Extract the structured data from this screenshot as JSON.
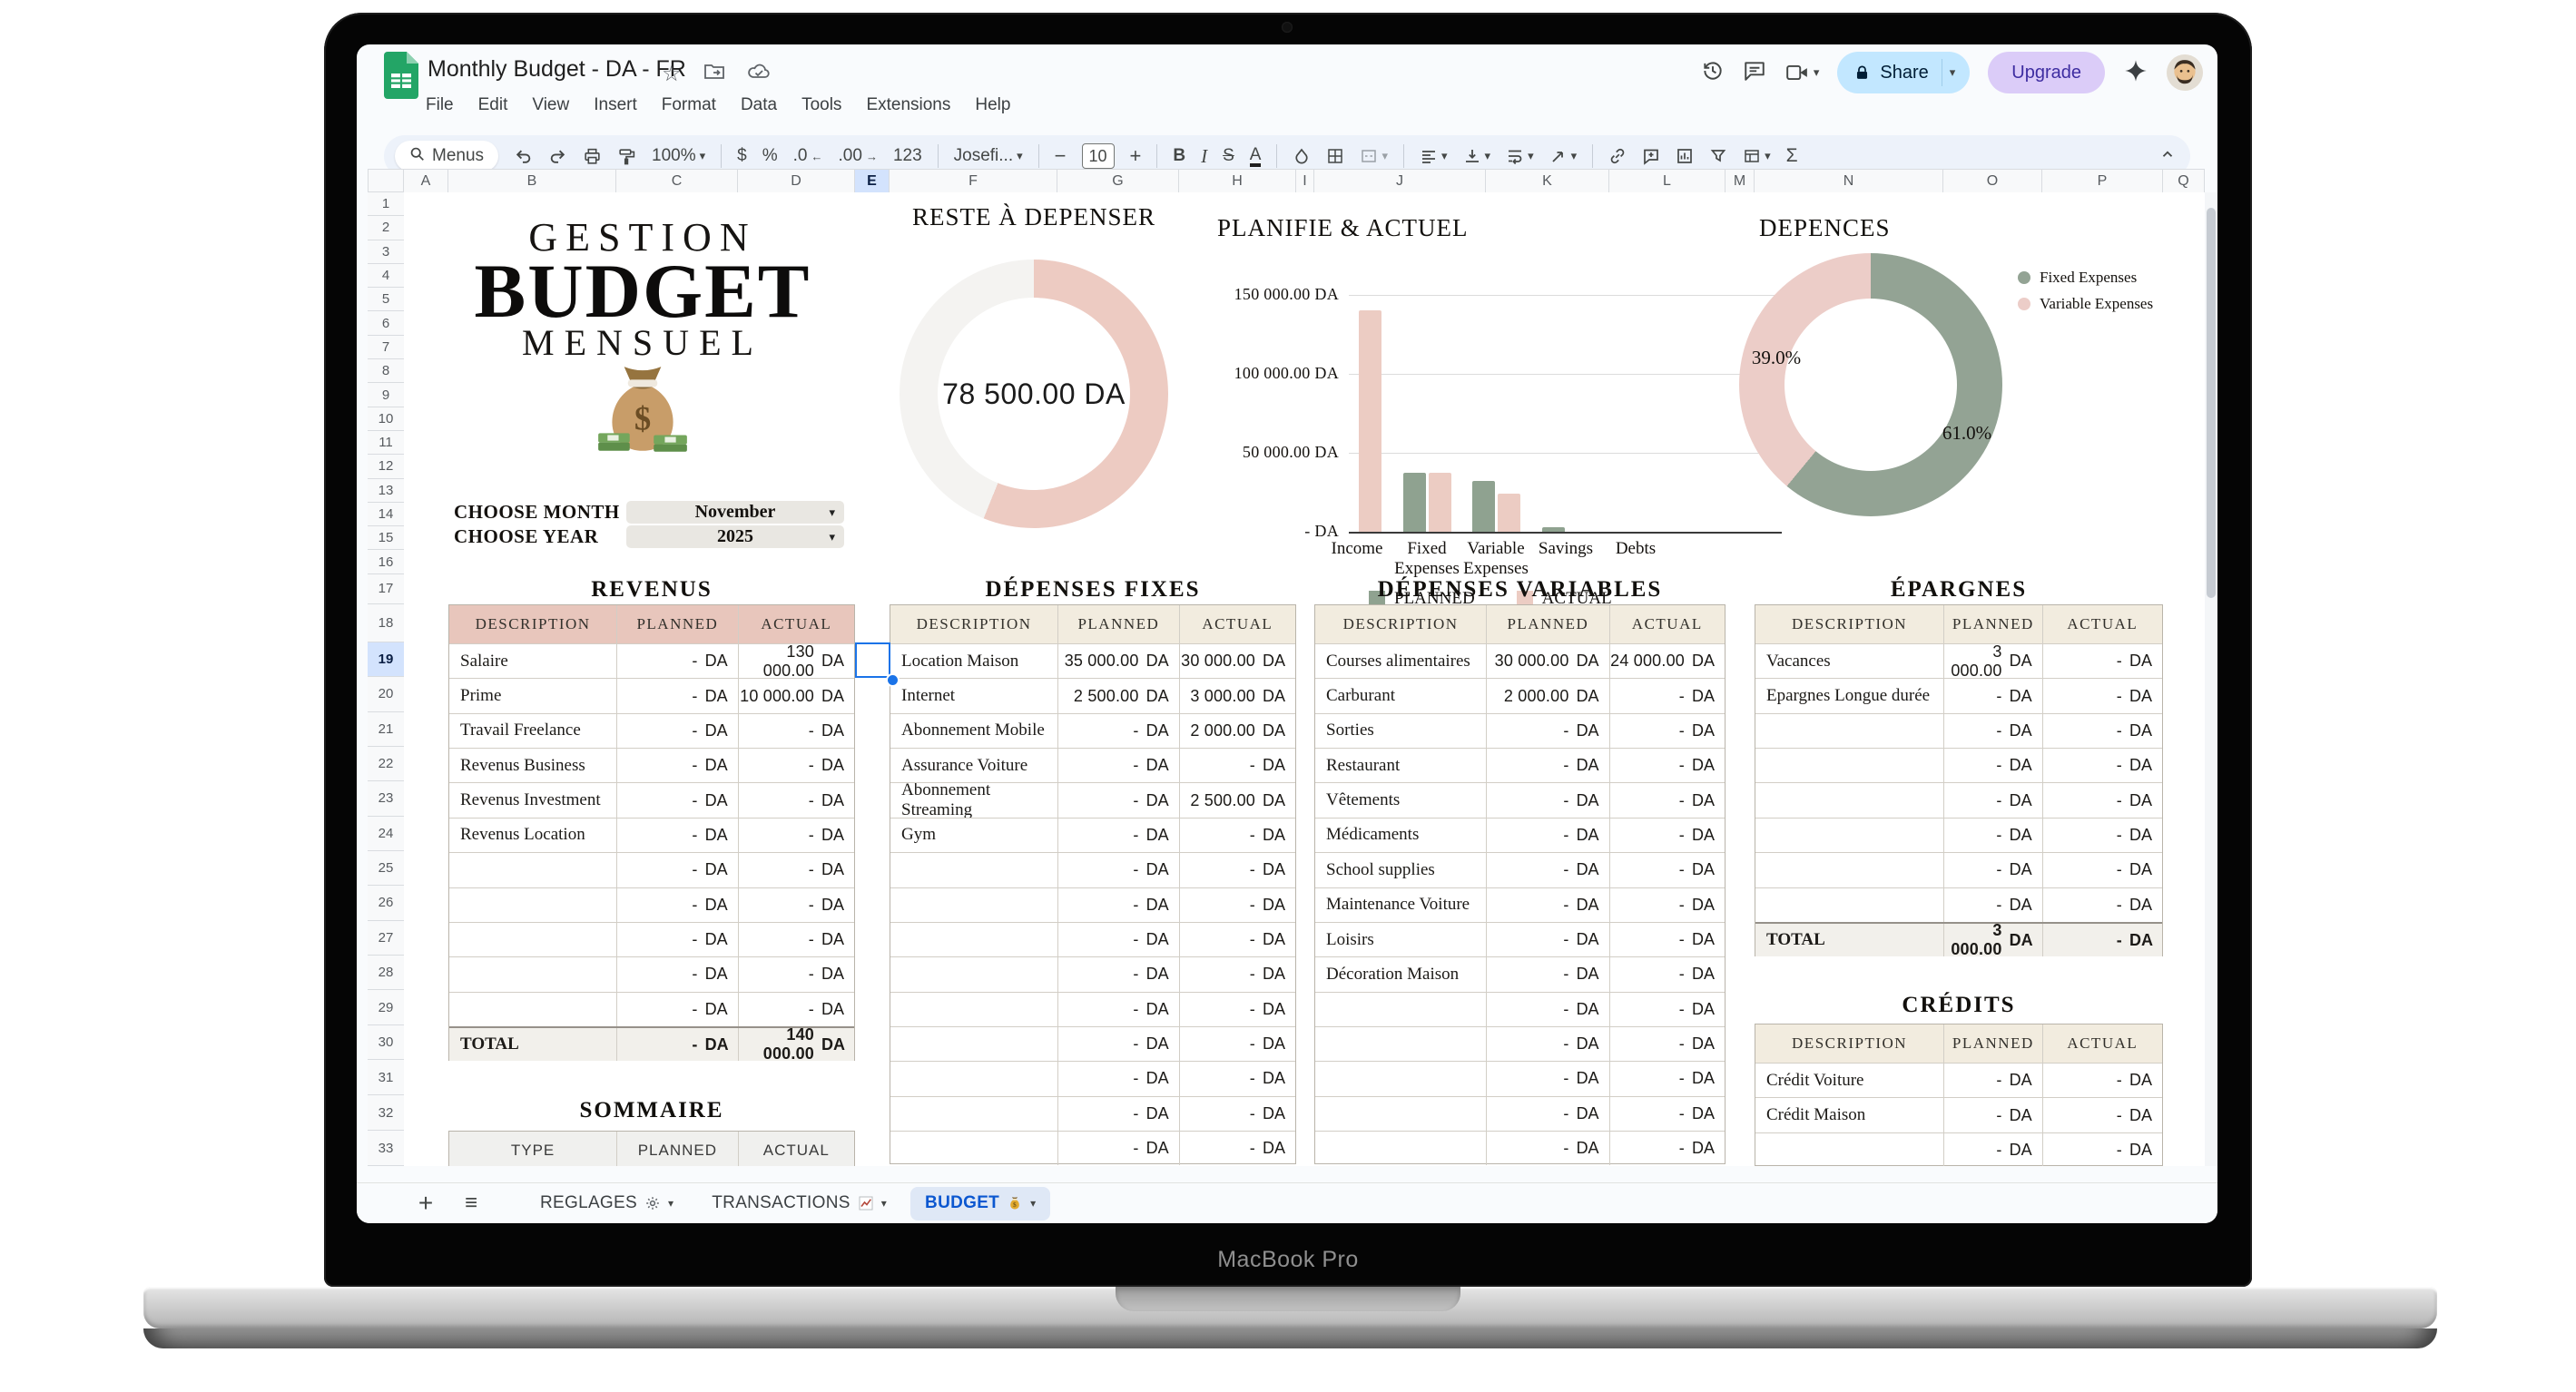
{
  "laptop": {
    "label": "MacBook Pro"
  },
  "chrome": {
    "doc_title": "Monthly Budget - DA - FR",
    "menu_items": [
      "File",
      "Edit",
      "View",
      "Insert",
      "Format",
      "Data",
      "Tools",
      "Extensions",
      "Help"
    ],
    "toolbar": {
      "menus": "Menus",
      "zoom": "100%",
      "dollar": "$",
      "percent": "%",
      "dec0": ".0",
      "dec00": ".00",
      "f123": "123",
      "font": "Josefi...",
      "size": "10",
      "bold": "B",
      "italic": "I",
      "strike": "S",
      "color": "A",
      "sigma": "Σ"
    },
    "share": "Share",
    "upgrade": "Upgrade",
    "tabs": [
      {
        "label": "REGLAGES",
        "icon": "gear-icon",
        "active": false
      },
      {
        "label": "TRANSACTIONS",
        "icon": "chart-icon",
        "active": false
      },
      {
        "label": "BUDGET",
        "icon": "moneybag-icon",
        "active": true
      }
    ],
    "column_letters": [
      "A",
      "B",
      "C",
      "D",
      "E",
      "F",
      "G",
      "H",
      "I",
      "J",
      "K",
      "L",
      "M",
      "N",
      "O",
      "P",
      "Q"
    ],
    "row_numbers": [
      "1",
      "2",
      "3",
      "4",
      "5",
      "6",
      "7",
      "8",
      "9",
      "10",
      "11",
      "12",
      "13",
      "14",
      "15",
      "16",
      "17",
      "18",
      "19",
      "20",
      "21",
      "22",
      "23",
      "24",
      "25",
      "26",
      "27",
      "28",
      "29",
      "30",
      "31",
      "32",
      "33"
    ],
    "selected_column": "E",
    "selected_row": "19"
  },
  "hero": {
    "title1": "GESTION",
    "title2": "BUDGET",
    "title3": "MENSUEL",
    "choose_month": "CHOOSE MONTH",
    "month": "November",
    "choose_year": "CHOOSE YEAR",
    "year": "2025"
  },
  "chart_data": [
    {
      "type": "donut",
      "title": "RESTE À DEPENSER",
      "center_label": "78 500.00 DA",
      "segments": [
        {
          "name": "remaining",
          "pct": 56.1,
          "color": "#edcbc2"
        },
        {
          "name": "spent",
          "pct": 43.9,
          "color": "#f4f3f1"
        }
      ]
    },
    {
      "type": "bar",
      "title": "PLANIFIE & ACTUEL",
      "categories": [
        "Income",
        "Fixed Expenses",
        "Variable Expenses",
        "Savings",
        "Debts"
      ],
      "series": [
        {
          "name": "PLANNED",
          "color": "#8fa290",
          "values": [
            0,
            37500,
            32000,
            3000,
            0
          ]
        },
        {
          "name": "ACTUAL",
          "color": "#ecccc3",
          "values": [
            140000,
            37500,
            24000,
            0,
            0
          ]
        }
      ],
      "yticks": [
        {
          "label": "-   DA",
          "value": 0
        },
        {
          "label": "50 000.00 DA",
          "value": 50000
        },
        {
          "label": "100 000.00 DA",
          "value": 100000
        },
        {
          "label": "150 000.00 DA",
          "value": 150000
        }
      ],
      "ylim": [
        0,
        150000
      ],
      "legend_position": "bottom"
    },
    {
      "type": "donut",
      "title": "DEPENCES",
      "segments": [
        {
          "name": "Fixed Expenses",
          "pct": 61.0,
          "pct_label": "61.0%",
          "color": "#93a394"
        },
        {
          "name": "Variable Expenses",
          "pct": 39.0,
          "pct_label": "39.0%",
          "color": "#eccdc8"
        }
      ]
    }
  ],
  "tables": {
    "unit": "DA",
    "headers": [
      "DESCRIPTION",
      "PLANNED",
      "ACTUAL"
    ],
    "revenus": {
      "title": "REVENUS",
      "rows": [
        [
          "Salaire",
          "-",
          "130 000.00"
        ],
        [
          "Prime",
          "-",
          "10 000.00"
        ],
        [
          "Travail Freelance",
          "-",
          "-"
        ],
        [
          "Revenus Business",
          "-",
          "-"
        ],
        [
          "Revenus Investment",
          "-",
          "-"
        ],
        [
          "Revenus Location",
          "-",
          "-"
        ],
        [
          "",
          "-",
          "-"
        ],
        [
          "",
          "-",
          "-"
        ],
        [
          "",
          "-",
          "-"
        ],
        [
          "",
          "-",
          "-"
        ],
        [
          "",
          "-",
          "-"
        ]
      ],
      "total": [
        "TOTAL",
        "-",
        "140 000.00"
      ]
    },
    "depenses_fixes": {
      "title": "DÉPENSES FIXES",
      "rows": [
        [
          "Location Maison",
          "35 000.00",
          "30 000.00"
        ],
        [
          "Internet",
          "2 500.00",
          "3 000.00"
        ],
        [
          "Abonnement Mobile",
          "-",
          "2 000.00"
        ],
        [
          "Assurance Voiture",
          "-",
          "-"
        ],
        [
          "Abonnement Streaming",
          "-",
          "2 500.00"
        ],
        [
          "Gym",
          "-",
          "-"
        ],
        [
          "",
          "-",
          "-"
        ],
        [
          "",
          "-",
          "-"
        ],
        [
          "",
          "-",
          "-"
        ],
        [
          "",
          "-",
          "-"
        ],
        [
          "",
          "-",
          "-"
        ],
        [
          "",
          "-",
          "-"
        ],
        [
          "",
          "-",
          "-"
        ],
        [
          "",
          "-",
          "-"
        ],
        [
          "",
          "-",
          "-"
        ]
      ]
    },
    "depenses_variables": {
      "title": "DÉPENSES VARIABLES",
      "rows": [
        [
          "Courses alimentaires",
          "30 000.00",
          "24 000.00"
        ],
        [
          "Carburant",
          "2 000.00",
          "-"
        ],
        [
          "Sorties",
          "-",
          "-"
        ],
        [
          "Restaurant",
          "-",
          "-"
        ],
        [
          "Vêtements",
          "-",
          "-"
        ],
        [
          "Médicaments",
          "-",
          "-"
        ],
        [
          "School supplies",
          "-",
          "-"
        ],
        [
          "Maintenance Voiture",
          "-",
          "-"
        ],
        [
          "Loisirs",
          "-",
          "-"
        ],
        [
          "Décoration Maison",
          "-",
          "-"
        ],
        [
          "",
          "-",
          "-"
        ],
        [
          "",
          "-",
          "-"
        ],
        [
          "",
          "-",
          "-"
        ],
        [
          "",
          "-",
          "-"
        ],
        [
          "",
          "-",
          "-"
        ]
      ]
    },
    "epargnes": {
      "title": "ÉPARGNES",
      "rows": [
        [
          "Vacances",
          "3 000.00",
          "-"
        ],
        [
          "Epargnes Longue durée",
          "-",
          "-"
        ],
        [
          "",
          "-",
          "-"
        ],
        [
          "",
          "-",
          "-"
        ],
        [
          "",
          "-",
          "-"
        ],
        [
          "",
          "-",
          "-"
        ],
        [
          "",
          "-",
          "-"
        ],
        [
          "",
          "-",
          "-"
        ]
      ],
      "total": [
        "TOTAL",
        "3 000.00",
        "-"
      ]
    },
    "credits": {
      "title": "CRÉDITS",
      "rows": [
        [
          "Crédit Voiture",
          "-",
          "-"
        ],
        [
          "Crédit Maison",
          "-",
          "-"
        ],
        [
          "",
          "-",
          "-"
        ]
      ]
    },
    "sommaire": {
      "title": "SOMMAIRE",
      "headers": [
        "TYPE",
        "PLANNED",
        "ACTUAL"
      ]
    }
  }
}
